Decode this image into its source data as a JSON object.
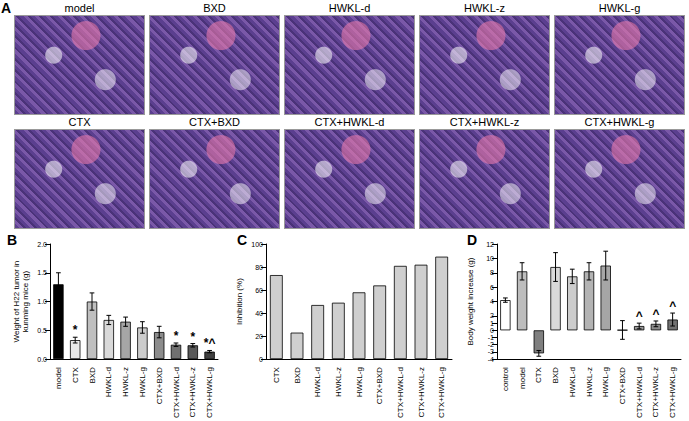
{
  "figure": {
    "panel_a": {
      "letter": "A",
      "images": [
        "model",
        "BXD",
        "HWKL-d",
        "HWKL-z",
        "HWKL-g",
        "CTX",
        "CTX+BXD",
        "CTX+HWKL-d",
        "CTX+HWKL-z",
        "CTX+HWKL-g"
      ]
    }
  },
  "chart_data": [
    {
      "type": "bar",
      "title": "B",
      "ylabel": "Weight of H22 tumor in\nkunming mice (g)",
      "categories": [
        "model",
        "CTX",
        "BXD",
        "HWKL-d",
        "HWKL-z",
        "HWKL-g",
        "CTX+BXD",
        "CTX+HWKL-d",
        "CTX+HWKL-z",
        "CTX+HWKL-g"
      ],
      "values": [
        1.3,
        0.33,
        1.0,
        0.68,
        0.65,
        0.55,
        0.47,
        0.25,
        0.24,
        0.13
      ],
      "errors": [
        0.2,
        0.05,
        0.15,
        0.08,
        0.08,
        0.1,
        0.1,
        0.03,
        0.03,
        0.02
      ],
      "annotations": [
        null,
        "*",
        null,
        null,
        null,
        null,
        null,
        "*",
        "*",
        "*^"
      ],
      "colors": [
        "#000000",
        "#e8e8e8",
        "#bfbfbf",
        "#d9d9d9",
        "#a6a6a6",
        "#cccccc",
        "#8c8c8c",
        "#707070",
        "#595959",
        "#404040"
      ],
      "ylim": [
        0,
        2
      ],
      "yticks": [
        {
          "value": 0,
          "label": "0.0"
        },
        {
          "value": 0.5,
          "label": "0.5"
        },
        {
          "value": 1,
          "label": "1.0"
        },
        {
          "value": 1.5,
          "label": "1.5"
        },
        {
          "value": 2,
          "label": "2.0"
        }
      ],
      "grid": false
    },
    {
      "type": "bar",
      "title": "C",
      "ylabel": "Inhibition (%)",
      "categories": [
        "CTX",
        "BXD",
        "HWKL-d",
        "HWKL-z",
        "HWKL-g",
        "CTX+BXD",
        "CTX+HWKL-d",
        "CTX+HWKL-z",
        "CTX+HWKL-g"
      ],
      "values": [
        73,
        23,
        47,
        49,
        58,
        64,
        81,
        82,
        89
      ],
      "color": "#cfcfcf",
      "ylim": [
        0,
        100
      ],
      "yticks": [
        0,
        20,
        40,
        60,
        80,
        100
      ],
      "grid": false
    },
    {
      "type": "bar",
      "title": "D",
      "ylabel": "Body weight increase (g)",
      "categories": [
        "control",
        "model",
        "CTX",
        "BXD",
        "HWKL-d",
        "HWKL-z",
        "HWKL-g",
        "CTX+BXD",
        "CTX+HWKL-d",
        "CTX+HWKL-z",
        "CTX+HWKL-g"
      ],
      "values": [
        4.2,
        8.2,
        -3.2,
        8.8,
        7.5,
        8.2,
        9.0,
        0.05,
        0.6,
        0.9,
        1.5
      ],
      "errors": [
        0.3,
        1.2,
        0.4,
        2.0,
        1.0,
        1.2,
        2.0,
        1.3,
        0.4,
        0.4,
        0.9
      ],
      "annotations": [
        null,
        null,
        null,
        null,
        null,
        null,
        null,
        null,
        "^",
        "^",
        "^"
      ],
      "colors": [
        "#ffffff",
        "#bdbdbd",
        "#7f7f7f",
        "#d9d9d9",
        "#cccccc",
        "#b3b3b3",
        "#a6a6a6",
        "#e6e6e6",
        "#999999",
        "#8c8c8c",
        "#737373"
      ],
      "ylim": [
        -4,
        12
      ],
      "yticks": [
        -4,
        -3,
        -2,
        -1,
        0,
        1,
        2,
        4,
        6,
        8,
        10,
        12
      ],
      "grid": false
    }
  ]
}
